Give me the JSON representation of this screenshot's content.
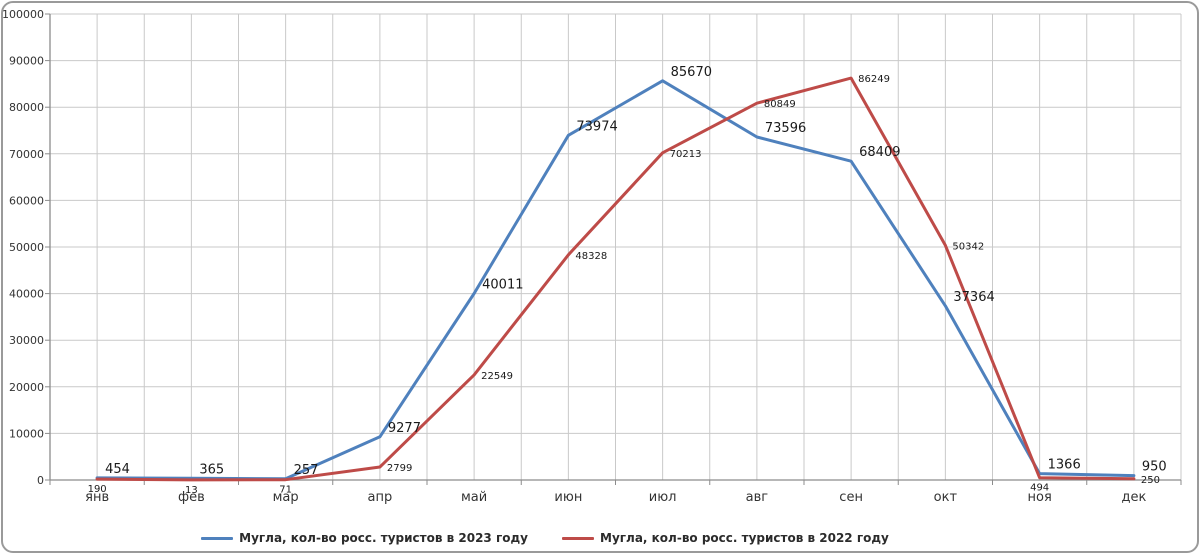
{
  "chart_data": {
    "type": "line",
    "title": "",
    "xlabel": "",
    "ylabel": "",
    "categories": [
      "янв",
      "фев",
      "мар",
      "апр",
      "май",
      "июн",
      "июл",
      "авг",
      "сен",
      "окт",
      "ноя",
      "дек"
    ],
    "series": [
      {
        "name": "Мугла, кол-во росс. туристов в 2023 году",
        "color": "#4F81BD",
        "values": [
          454,
          365,
          257,
          9277,
          40011,
          73974,
          85670,
          73596,
          68409,
          37364,
          1366,
          950
        ],
        "label_positions": [
          "above",
          "above",
          "above",
          "above",
          "above",
          "above",
          "above",
          "above",
          "above",
          "above",
          "above",
          "above"
        ],
        "label_font_size": 13
      },
      {
        "name": "Мугла, кол-во росс. туристов в 2022 году",
        "color": "#BE4B48",
        "values": [
          190,
          13,
          71,
          2799,
          22549,
          48328,
          70213,
          80849,
          86249,
          50342,
          494,
          250
        ],
        "label_positions": [
          "below",
          "below",
          "below",
          "right",
          "right",
          "right",
          "right",
          "right",
          "right",
          "right",
          "below",
          "right"
        ],
        "label_font_size": 10
      }
    ],
    "ylim": [
      0,
      100000
    ],
    "yticks": [
      0,
      10000,
      20000,
      30000,
      40000,
      50000,
      60000,
      70000,
      80000,
      90000,
      100000
    ],
    "grid": true,
    "minor_vertical_grid": true,
    "legend_position": "bottom",
    "colors": {
      "gridline": "#c9c9c9",
      "axis": "#8c8c8c",
      "tick_label": "#333333",
      "data_label": "#1a1a1a",
      "frame_border": "#9a9a9a",
      "background": "#ffffff"
    }
  }
}
